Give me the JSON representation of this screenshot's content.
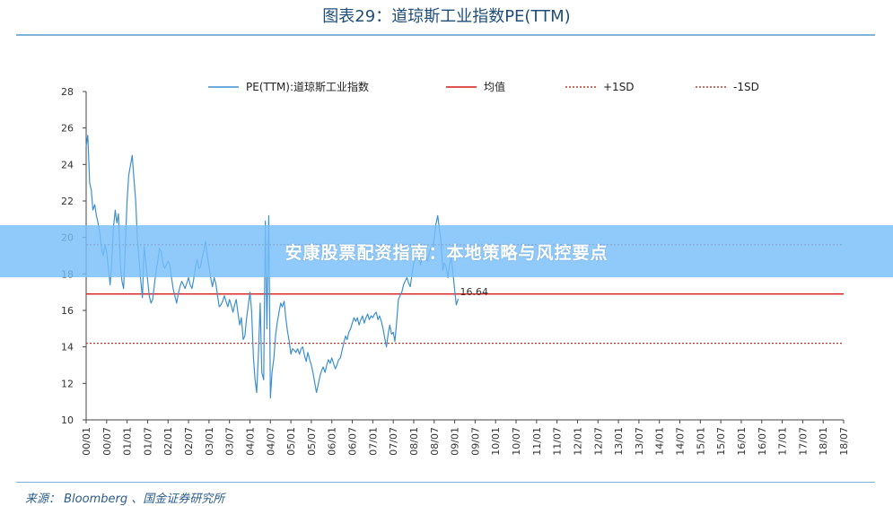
{
  "header": {
    "title": "图表29：道琼斯工业指数PE(TTM)"
  },
  "footer": {
    "source": "来源： Bloomberg 、国金证券研究所"
  },
  "overlay": {
    "banner_text": "安康股票配资指南：本地策略与风控要点"
  },
  "colors": {
    "pe_line": "#3d8fd1",
    "mean_line": "#d7191c",
    "sd_line": "#c0392b",
    "axis": "#444444"
  },
  "chart_data": {
    "type": "line",
    "title": "图表29：道琼斯工业指数PE(TTM)",
    "xlabel": "",
    "ylabel": "",
    "ylim": [
      10,
      28
    ],
    "yticks": [
      10,
      12,
      14,
      16,
      18,
      20,
      22,
      24,
      26,
      28
    ],
    "xticks": [
      "00/01",
      "00/07",
      "01/01",
      "01/07",
      "02/01",
      "02/07",
      "03/01",
      "03/07",
      "04/01",
      "04/07",
      "05/01",
      "05/07",
      "06/01",
      "06/07",
      "07/01",
      "07/07",
      "08/01",
      "08/07",
      "09/01",
      "09/07",
      "10/01",
      "10/07",
      "11/01",
      "11/07",
      "12/01",
      "12/07",
      "13/01",
      "13/07",
      "14/01",
      "14/07",
      "15/01",
      "15/07",
      "16/01",
      "16/07",
      "17/01",
      "17/07",
      "18/01",
      "18/07"
    ],
    "grid": false,
    "legend_position": "top",
    "series": [
      {
        "name": "PE(TTM):道琼斯工业指数",
        "style": "solid",
        "points": [
          [
            0.0,
            25.0
          ],
          [
            0.08,
            25.6
          ],
          [
            0.17,
            23.0
          ],
          [
            0.25,
            22.6
          ],
          [
            0.33,
            21.5
          ],
          [
            0.42,
            21.8
          ],
          [
            0.5,
            21.2
          ],
          [
            0.58,
            20.8
          ],
          [
            0.67,
            20.2
          ],
          [
            0.75,
            19.4
          ],
          [
            0.83,
            19.0
          ],
          [
            0.92,
            19.6
          ],
          [
            1.0,
            19.2
          ],
          [
            1.08,
            18.4
          ],
          [
            1.17,
            17.4
          ],
          [
            1.25,
            18.6
          ],
          [
            1.33,
            20.5
          ],
          [
            1.42,
            21.5
          ],
          [
            1.5,
            20.8
          ],
          [
            1.58,
            21.3
          ],
          [
            1.67,
            18.5
          ],
          [
            1.75,
            17.6
          ],
          [
            1.83,
            17.2
          ],
          [
            1.92,
            19.8
          ],
          [
            2.0,
            22.0
          ],
          [
            2.08,
            23.4
          ],
          [
            2.17,
            24.0
          ],
          [
            2.25,
            24.5
          ],
          [
            2.33,
            23.3
          ],
          [
            2.42,
            22.0
          ],
          [
            2.5,
            20.0
          ],
          [
            2.58,
            18.8
          ],
          [
            2.67,
            17.6
          ],
          [
            2.75,
            16.7
          ],
          [
            2.83,
            19.5
          ],
          [
            2.92,
            18.6
          ],
          [
            3.0,
            17.7
          ],
          [
            3.08,
            16.8
          ],
          [
            3.17,
            16.4
          ],
          [
            3.25,
            16.6
          ],
          [
            3.33,
            17.4
          ],
          [
            3.42,
            18.2
          ],
          [
            3.5,
            18.7
          ],
          [
            3.58,
            19.4
          ],
          [
            3.67,
            19.2
          ],
          [
            3.75,
            18.6
          ],
          [
            3.83,
            18.3
          ],
          [
            3.92,
            18.5
          ],
          [
            4.0,
            18.7
          ],
          [
            4.08,
            18.5
          ],
          [
            4.17,
            17.8
          ],
          [
            4.25,
            17.2
          ],
          [
            4.33,
            16.8
          ],
          [
            4.42,
            16.4
          ],
          [
            4.5,
            16.9
          ],
          [
            4.58,
            17.3
          ],
          [
            4.67,
            17.6
          ],
          [
            4.75,
            17.4
          ],
          [
            4.83,
            17.2
          ],
          [
            4.92,
            17.5
          ],
          [
            5.0,
            17.8
          ],
          [
            5.08,
            17.4
          ],
          [
            5.17,
            17.2
          ],
          [
            5.25,
            17.7
          ],
          [
            5.33,
            18.3
          ],
          [
            5.42,
            18.8
          ],
          [
            5.5,
            18.3
          ],
          [
            5.58,
            18.4
          ],
          [
            5.67,
            18.9
          ],
          [
            5.75,
            19.3
          ],
          [
            5.83,
            19.8
          ],
          [
            5.92,
            19.0
          ],
          [
            6.0,
            18.4
          ],
          [
            6.08,
            17.8
          ],
          [
            6.17,
            17.3
          ],
          [
            6.25,
            17.8
          ],
          [
            6.33,
            17.5
          ],
          [
            6.42,
            16.8
          ],
          [
            6.5,
            16.2
          ],
          [
            6.58,
            16.3
          ],
          [
            6.67,
            16.5
          ],
          [
            6.75,
            16.8
          ],
          [
            6.83,
            16.5
          ],
          [
            6.92,
            16.2
          ],
          [
            7.0,
            16.6
          ],
          [
            7.08,
            16.3
          ],
          [
            7.17,
            15.9
          ],
          [
            7.25,
            16.3
          ],
          [
            7.33,
            16.6
          ],
          [
            7.42,
            15.8
          ],
          [
            7.5,
            15.2
          ],
          [
            7.58,
            15.6
          ],
          [
            7.67,
            14.4
          ],
          [
            7.75,
            14.6
          ],
          [
            7.83,
            15.5
          ],
          [
            7.92,
            16.3
          ],
          [
            8.0,
            17.0
          ],
          [
            8.08,
            16.0
          ],
          [
            8.17,
            13.4
          ],
          [
            8.25,
            12.2
          ],
          [
            8.33,
            11.5
          ],
          [
            8.42,
            13.8
          ],
          [
            8.5,
            16.4
          ],
          [
            8.58,
            12.6
          ],
          [
            8.67,
            12.2
          ],
          [
            8.75,
            20.9
          ],
          [
            8.83,
            15.0
          ],
          [
            8.92,
            21.2
          ],
          [
            9.0,
            11.2
          ],
          [
            9.08,
            12.6
          ],
          [
            9.17,
            13.4
          ],
          [
            9.25,
            14.6
          ],
          [
            9.33,
            15.3
          ],
          [
            9.42,
            15.9
          ],
          [
            9.5,
            16.4
          ],
          [
            9.58,
            16.2
          ],
          [
            9.67,
            16.5
          ],
          [
            9.75,
            15.6
          ],
          [
            9.83,
            14.9
          ],
          [
            9.92,
            14.3
          ],
          [
            10.0,
            13.6
          ],
          [
            10.08,
            13.9
          ],
          [
            10.17,
            13.8
          ],
          [
            10.25,
            13.7
          ],
          [
            10.33,
            13.9
          ],
          [
            10.42,
            13.6
          ],
          [
            10.5,
            13.9
          ],
          [
            10.58,
            14.0
          ],
          [
            10.67,
            13.5
          ],
          [
            10.75,
            13.2
          ],
          [
            10.83,
            13.7
          ],
          [
            10.92,
            13.3
          ],
          [
            11.0,
            13.0
          ],
          [
            11.08,
            12.6
          ],
          [
            11.17,
            12.0
          ],
          [
            11.25,
            11.5
          ],
          [
            11.33,
            11.9
          ],
          [
            11.42,
            12.4
          ],
          [
            11.5,
            12.7
          ],
          [
            11.58,
            12.9
          ],
          [
            11.67,
            12.6
          ],
          [
            11.75,
            13.0
          ],
          [
            11.83,
            13.3
          ],
          [
            11.92,
            13.1
          ],
          [
            12.0,
            13.4
          ],
          [
            12.08,
            13.1
          ],
          [
            12.17,
            12.8
          ],
          [
            12.25,
            13.0
          ],
          [
            12.33,
            13.3
          ],
          [
            12.42,
            13.4
          ],
          [
            12.5,
            13.8
          ],
          [
            12.58,
            14.2
          ],
          [
            12.67,
            14.6
          ],
          [
            12.75,
            14.4
          ],
          [
            12.83,
            14.8
          ],
          [
            12.92,
            15.0
          ],
          [
            13.0,
            15.3
          ],
          [
            13.08,
            15.6
          ],
          [
            13.17,
            15.4
          ],
          [
            13.25,
            15.6
          ],
          [
            13.33,
            15.2
          ],
          [
            13.42,
            15.5
          ],
          [
            13.5,
            15.7
          ],
          [
            13.58,
            15.3
          ],
          [
            13.67,
            15.6
          ],
          [
            13.75,
            15.8
          ],
          [
            13.83,
            15.5
          ],
          [
            13.92,
            15.7
          ],
          [
            14.0,
            15.6
          ],
          [
            14.08,
            15.8
          ],
          [
            14.17,
            15.9
          ],
          [
            14.25,
            15.5
          ],
          [
            14.33,
            15.7
          ],
          [
            14.42,
            15.4
          ],
          [
            14.5,
            15.0
          ],
          [
            14.58,
            14.5
          ],
          [
            14.67,
            14.0
          ],
          [
            14.75,
            14.7
          ],
          [
            14.83,
            15.2
          ],
          [
            14.92,
            14.7
          ],
          [
            15.0,
            14.8
          ],
          [
            15.08,
            14.3
          ],
          [
            15.17,
            15.4
          ],
          [
            15.25,
            16.6
          ],
          [
            15.33,
            16.8
          ],
          [
            15.42,
            17.0
          ],
          [
            15.5,
            17.4
          ],
          [
            15.58,
            17.6
          ],
          [
            15.67,
            17.8
          ],
          [
            15.75,
            17.5
          ],
          [
            15.83,
            17.3
          ],
          [
            15.92,
            18.0
          ],
          [
            16.0,
            18.6
          ],
          [
            16.08,
            18.9
          ],
          [
            16.17,
            19.3
          ],
          [
            16.25,
            18.9
          ],
          [
            16.33,
            18.5
          ],
          [
            16.42,
            18.9
          ],
          [
            16.5,
            19.2
          ],
          [
            16.58,
            19.0
          ],
          [
            16.67,
            18.7
          ],
          [
            16.75,
            19.1
          ],
          [
            16.83,
            19.4
          ],
          [
            16.92,
            19.3
          ],
          [
            17.0,
            19.9
          ],
          [
            17.08,
            20.7
          ],
          [
            17.17,
            21.2
          ],
          [
            17.25,
            20.5
          ],
          [
            17.33,
            19.8
          ],
          [
            17.42,
            18.2
          ],
          [
            17.5,
            18.6
          ],
          [
            17.58,
            18.4
          ],
          [
            17.67,
            17.8
          ],
          [
            17.75,
            18.5
          ],
          [
            17.83,
            18.9
          ],
          [
            17.92,
            18.0
          ],
          [
            18.0,
            17.1
          ],
          [
            18.08,
            16.3
          ],
          [
            18.17,
            16.64
          ]
        ]
      },
      {
        "name": "均值",
        "style": "solid",
        "value": 16.9
      },
      {
        "name": "+1SD",
        "style": "dotted",
        "value": 19.6
      },
      {
        "name": "-1SD",
        "style": "dotted",
        "value": 14.2
      }
    ],
    "annotations": [
      {
        "text": "16.64",
        "x": 18.17,
        "y": 16.64
      }
    ]
  }
}
